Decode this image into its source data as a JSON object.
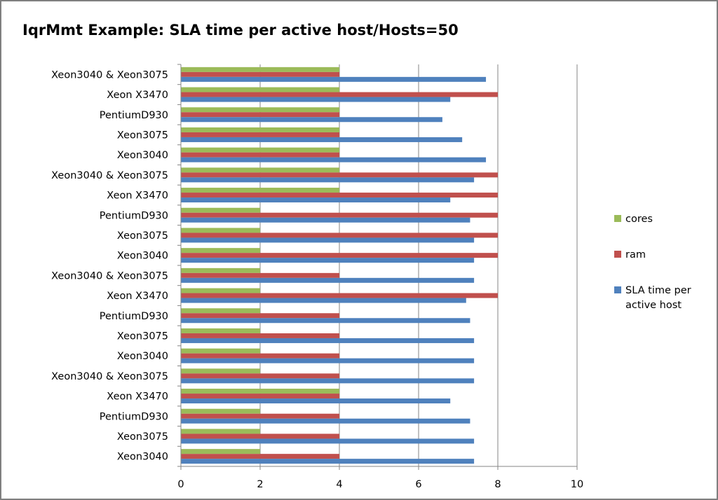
{
  "chart_data": {
    "type": "bar",
    "orientation": "horizontal",
    "title": "IqrMmt Example: SLA time per active host/Hosts=50",
    "xlabel": "",
    "ylabel": "",
    "xlim": [
      0,
      10
    ],
    "xticks": [
      0,
      2,
      4,
      6,
      8,
      10
    ],
    "grid": "vertical",
    "legend_position": "right",
    "categories": [
      "Xeon3040 & Xeon3075",
      "Xeon X3470",
      "PentiumD930",
      "Xeon3075",
      "Xeon3040",
      "Xeon3040 & Xeon3075",
      "Xeon X3470",
      "PentiumD930",
      "Xeon3075",
      "Xeon3040",
      "Xeon3040 & Xeon3075",
      "Xeon X3470",
      "PentiumD930",
      "Xeon3075",
      "Xeon3040",
      "Xeon3040 & Xeon3075",
      "Xeon X3470",
      "PentiumD930",
      "Xeon3075",
      "Xeon3040"
    ],
    "series": [
      {
        "name": "cores",
        "color": "#9bbb59",
        "values": [
          4,
          4,
          4,
          4,
          4,
          4,
          4,
          2,
          2,
          2,
          2,
          2,
          2,
          2,
          2,
          2,
          4,
          2,
          2,
          2
        ]
      },
      {
        "name": "ram",
        "color": "#c0504d",
        "values": [
          4,
          8,
          4,
          4,
          4,
          8,
          8,
          8,
          8,
          8,
          4,
          8,
          4,
          4,
          4,
          4,
          4,
          4,
          4,
          4
        ]
      },
      {
        "name": "SLA time per active host",
        "color": "#4f81bd",
        "values": [
          7.7,
          6.8,
          6.6,
          7.1,
          7.7,
          7.4,
          6.8,
          7.3,
          7.4,
          7.4,
          7.4,
          7.2,
          7.3,
          7.4,
          7.4,
          7.4,
          6.8,
          7.3,
          7.4,
          7.4
        ]
      }
    ]
  }
}
